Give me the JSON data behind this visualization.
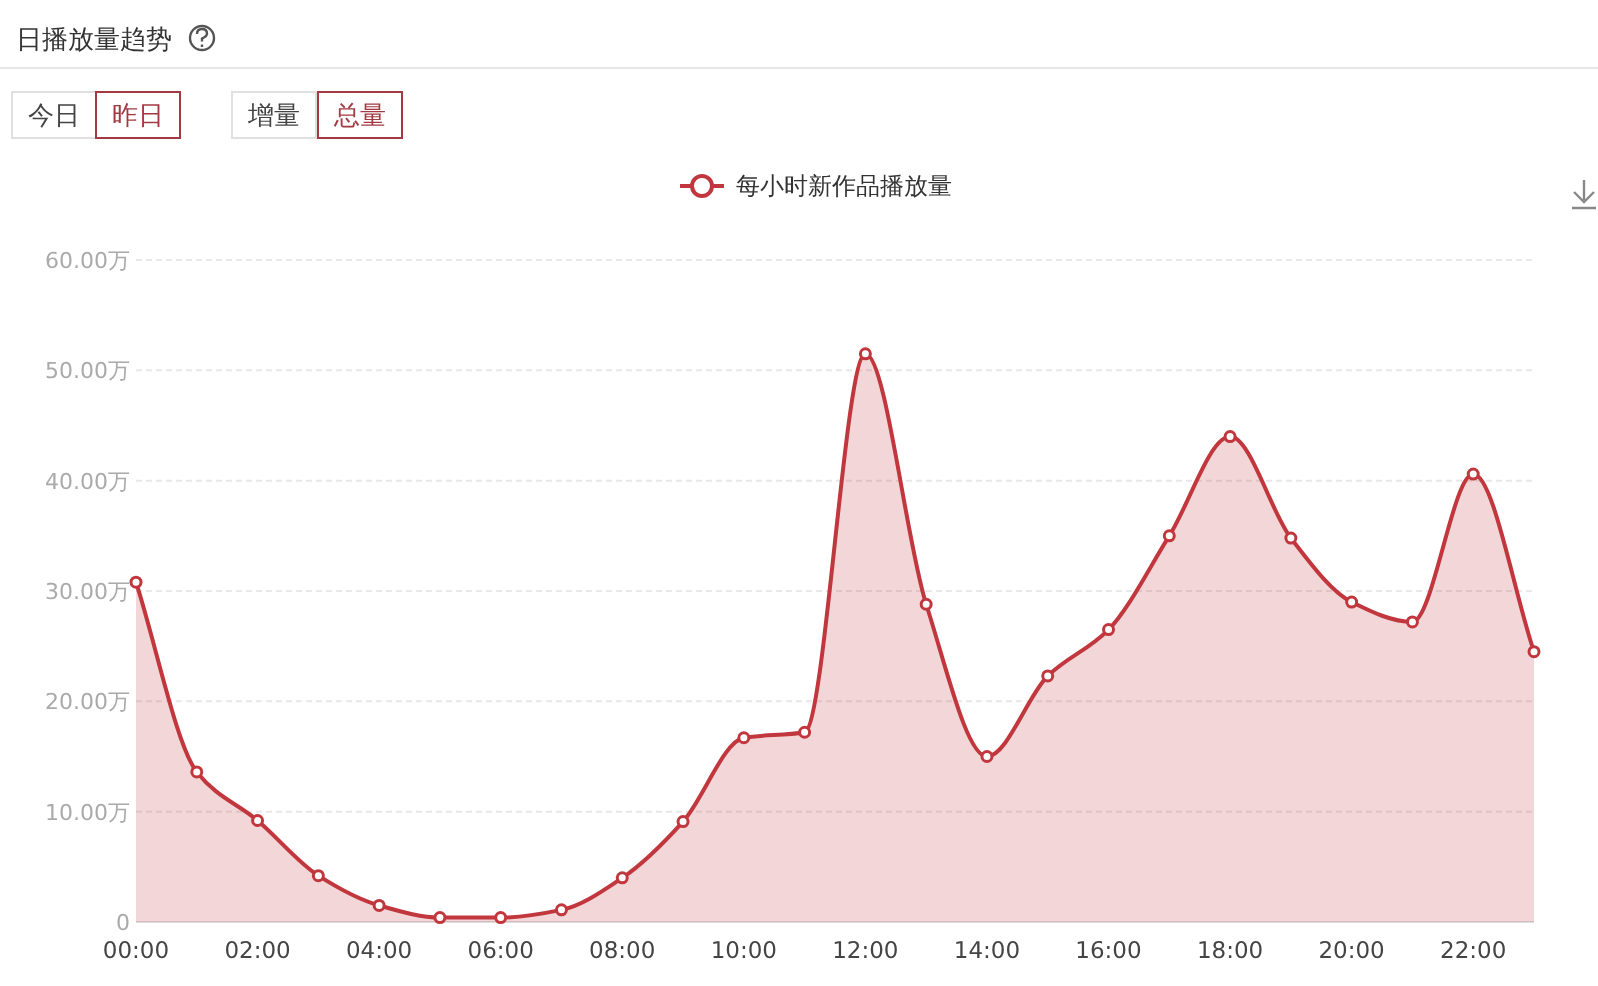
{
  "chart_data": {
    "type": "area",
    "title": "日播放量趋势",
    "annotations": [
      "今日",
      "昨日",
      "增量",
      "总量"
    ],
    "categories": [
      "00:00",
      null,
      "02:00",
      null,
      "04:00",
      null,
      "06:00",
      null,
      "08:00",
      null,
      "10:00",
      null,
      "12:00",
      null,
      "14:00",
      null,
      "16:00",
      null,
      "18:00",
      null,
      "20:00",
      null,
      "22:00",
      null
    ],
    "series": [
      {
        "name": "每小时新作品播放量",
        "color": "#c1373d",
        "values": [
          30.8,
          13.6,
          9.2,
          4.2,
          1.5,
          0.4,
          0.4,
          1.1,
          4.0,
          9.1,
          16.7,
          17.2,
          51.5,
          28.8,
          15.0,
          22.3,
          26.5,
          35.0,
          44.0,
          34.8,
          29.0,
          27.2,
          40.6,
          24.5
        ]
      }
    ],
    "ylim": [
      0,
      60
    ],
    "yticks": [
      0,
      {
        "value": 10,
        "label": "10.00万"
      },
      {
        "value": 20,
        "label": "20.00万"
      },
      {
        "value": 30,
        "label": "30.00万"
      },
      {
        "value": 40,
        "label": "40.00万"
      },
      {
        "value": 50,
        "label": "50.00万"
      },
      {
        "value": 60,
        "label": "60.00万"
      }
    ],
    "grid": "y",
    "legend": "top",
    "marker": "circle"
  }
}
